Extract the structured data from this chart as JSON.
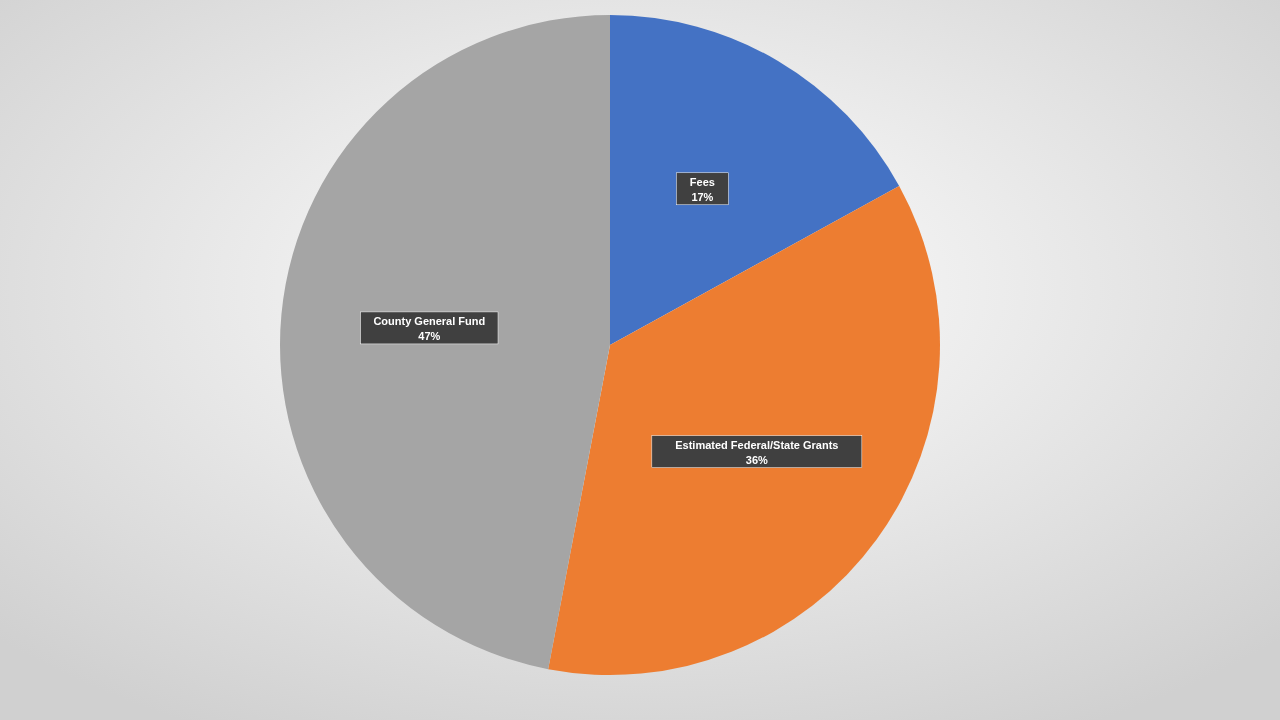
{
  "chart_data": {
    "type": "pie",
    "categories": [
      "Fees",
      "Estimated Federal/State Grants",
      "County General Fund"
    ],
    "values": [
      17,
      36,
      47
    ],
    "value_labels": [
      "17%",
      "36%",
      "47%"
    ],
    "colors": [
      "#4472c4",
      "#ed7d31",
      "#a5a5a5"
    ]
  }
}
